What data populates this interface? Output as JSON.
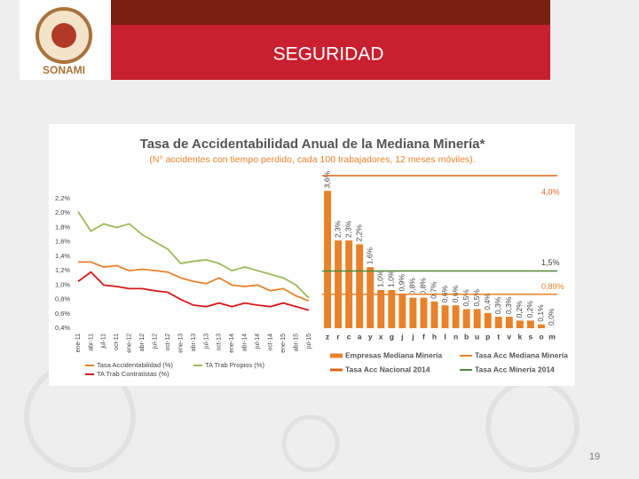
{
  "header": {
    "title": "SEGURIDAD",
    "logo": "SONAMI"
  },
  "page_number": "19",
  "panel": {
    "title": "Tasa de Accidentabilidad Anual de la Mediana Minería*",
    "subtitle": "(N° accidentes con tiempo perdido, cada 100 trabajadores, 12 meses móviles)."
  },
  "chart_data": [
    {
      "type": "line",
      "categories": [
        "ene-11",
        "abr-11",
        "jul-11",
        "oct-11",
        "ene-12",
        "abr-12",
        "jul-12",
        "oct-12",
        "ene-13",
        "abr-13",
        "jul-13",
        "oct-13",
        "ene-14",
        "abr-14",
        "jul-14",
        "oct-14",
        "ene-15",
        "abr-15",
        "jul-15"
      ],
      "series": [
        {
          "name": "Tasa Accidentabilidad (%)",
          "color": "#e8822a",
          "values": [
            1.32,
            1.32,
            1.25,
            1.27,
            1.2,
            1.22,
            1.2,
            1.18,
            1.1,
            1.05,
            1.02,
            1.1,
            1.0,
            0.98,
            1.0,
            0.92,
            0.95,
            0.85,
            0.78
          ]
        },
        {
          "name": "TA Trab Propios (%)",
          "color": "#9bbb59",
          "values": [
            2.02,
            1.75,
            1.85,
            1.8,
            1.85,
            1.7,
            1.6,
            1.5,
            1.3,
            1.33,
            1.35,
            1.3,
            1.2,
            1.25,
            1.2,
            1.15,
            1.1,
            1.0,
            0.82
          ]
        },
        {
          "name": "TA Trab Contratistas (%)",
          "color": "#d7191c",
          "values": [
            1.05,
            1.18,
            1.0,
            0.98,
            0.95,
            0.95,
            0.92,
            0.9,
            0.8,
            0.72,
            0.7,
            0.75,
            0.7,
            0.75,
            0.72,
            0.7,
            0.75,
            0.7,
            0.65
          ]
        }
      ],
      "ylim": [
        0.4,
        2.2
      ],
      "yticks": [
        {
          "value": 0.4,
          "label": "0,4%"
        },
        {
          "value": 0.6,
          "label": "0,6%"
        },
        {
          "value": 0.8,
          "label": "0,8%"
        },
        {
          "value": 1.0,
          "label": "1,0%"
        },
        {
          "value": 1.2,
          "label": "1,2%"
        },
        {
          "value": 1.4,
          "label": "1,4%"
        },
        {
          "value": 1.6,
          "label": "1,6%"
        },
        {
          "value": 1.8,
          "label": "1,8%"
        },
        {
          "value": 2.0,
          "label": "2,0%"
        },
        {
          "value": 2.2,
          "label": "2,2%"
        }
      ],
      "grid": false
    },
    {
      "type": "bar",
      "categories": [
        "z",
        "r",
        "c",
        "a",
        "y",
        "x",
        "g",
        "j",
        "j",
        "f",
        "h",
        "l",
        "n",
        "b",
        "u",
        "p",
        "t",
        "v",
        "k",
        "s",
        "o",
        "m"
      ],
      "series": [
        {
          "name": "Empresas Mediana Minería",
          "color": "#e8822a",
          "values": [
            3.6,
            2.3,
            2.3,
            2.2,
            1.6,
            1.0,
            1.0,
            0.9,
            0.8,
            0.8,
            0.7,
            0.6,
            0.6,
            0.5,
            0.5,
            0.4,
            0.3,
            0.3,
            0.2,
            0.2,
            0.1,
            0.0
          ],
          "value_labels": [
            "3,6%",
            "2,3%",
            "2,3%",
            "2,2%",
            "1,6%",
            "1,0%",
            "1,0%",
            "0,9%",
            "0,8%",
            "0,8%",
            "0,7%",
            "0,6%",
            "0,6%",
            "0,5%",
            "0,5%",
            "0,4%",
            "0,3%",
            "0,3%",
            "0,2%",
            "0,2%",
            "0,1%",
            "0,0%"
          ]
        }
      ],
      "reference_lines": [
        {
          "name": "Tasa Acc Mediana Minería",
          "color": "#e8822a",
          "value": 0.89,
          "value_label": "0,89%"
        },
        {
          "name": "Tasa Acc Nacional 2014",
          "color": "#d9661a",
          "value": 4.0,
          "value_label": "4,0%"
        },
        {
          "name": "Tasa Acc Minería 2014",
          "color": "#4f8a3a",
          "value": 1.5,
          "value_label": "1,5%"
        }
      ],
      "ylim": [
        0,
        4
      ]
    }
  ]
}
